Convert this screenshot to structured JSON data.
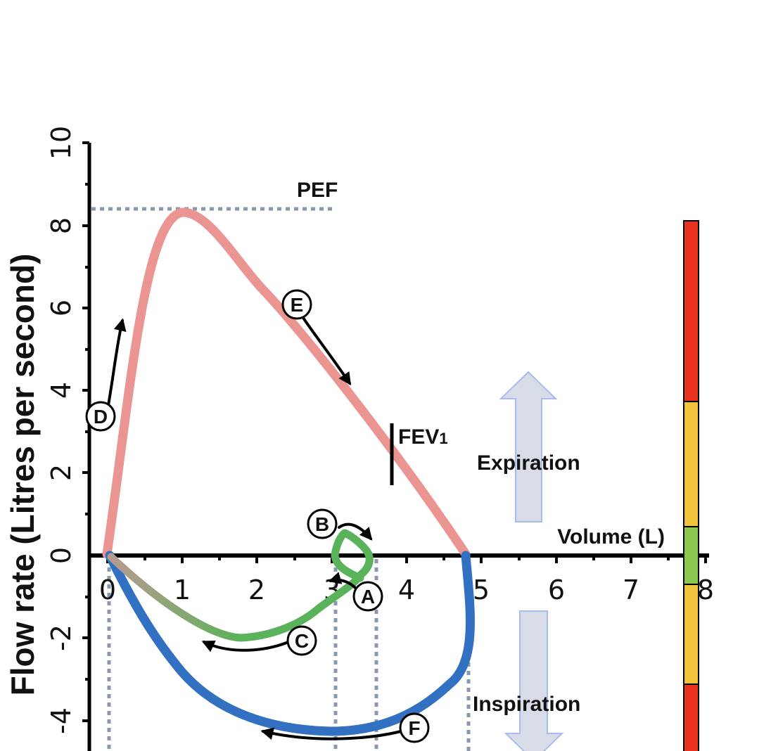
{
  "axes": {
    "y_label": "Flow rate (Litres per second)",
    "x_label": "Volume (L)",
    "x_ticks": [
      "0",
      "1",
      "2",
      "3",
      "4",
      "5",
      "6",
      "7",
      "8"
    ],
    "y_ticks": [
      "-4",
      "-2",
      "0",
      "2",
      "4",
      "6",
      "8",
      "10"
    ]
  },
  "annotations": {
    "pef": "PEF",
    "fev1_main": "FEV",
    "fev1_sub": "1",
    "expiration": "Expiration",
    "inspiration": "Inspiration"
  },
  "markers": [
    "A",
    "B",
    "C",
    "D",
    "E",
    "F"
  ],
  "colors": {
    "expiration_curve": "#eb9592",
    "inspiration_curve": "#3271c1",
    "tidal_loop": "#5ab25a",
    "guide_lines": "#8898b0",
    "arrow_fill": "#d8dce6",
    "arrow_stroke": "#a8bcef",
    "scale_red": "#e8341f",
    "scale_amber": "#f2c43c",
    "scale_green": "#8cc850"
  },
  "color_scale": [
    "red",
    "amber",
    "green",
    "amber",
    "red"
  ]
}
